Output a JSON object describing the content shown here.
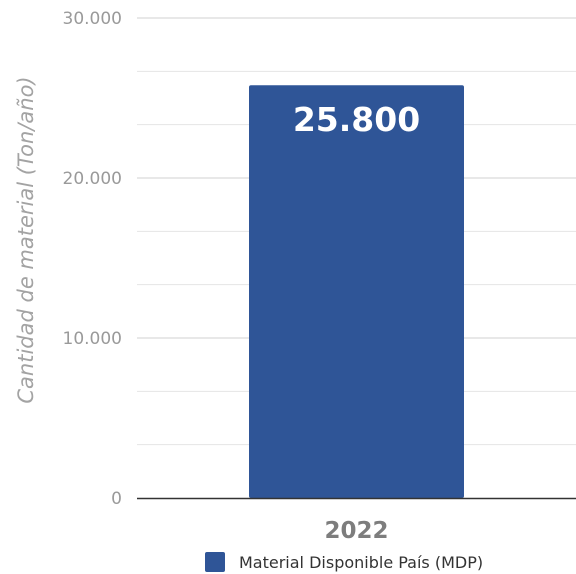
{
  "chart_data": {
    "type": "bar",
    "categories": [
      "2022"
    ],
    "series": [
      {
        "name": "Material Disponible País (MDP)",
        "values": [
          25800
        ],
        "color": "#2f5597"
      }
    ],
    "data_labels": [
      "25.800"
    ],
    "ylabel": "Cantidad de material (Ton/año)",
    "xlabel": "",
    "ylim": [
      0,
      30000
    ],
    "yticks": [
      0,
      10000,
      20000,
      30000
    ],
    "ytick_labels": [
      "0",
      "10.000",
      "20.000",
      "30.000"
    ],
    "minor_gridlines_step": 3333.33,
    "grid": true,
    "legend_position": "bottom"
  }
}
